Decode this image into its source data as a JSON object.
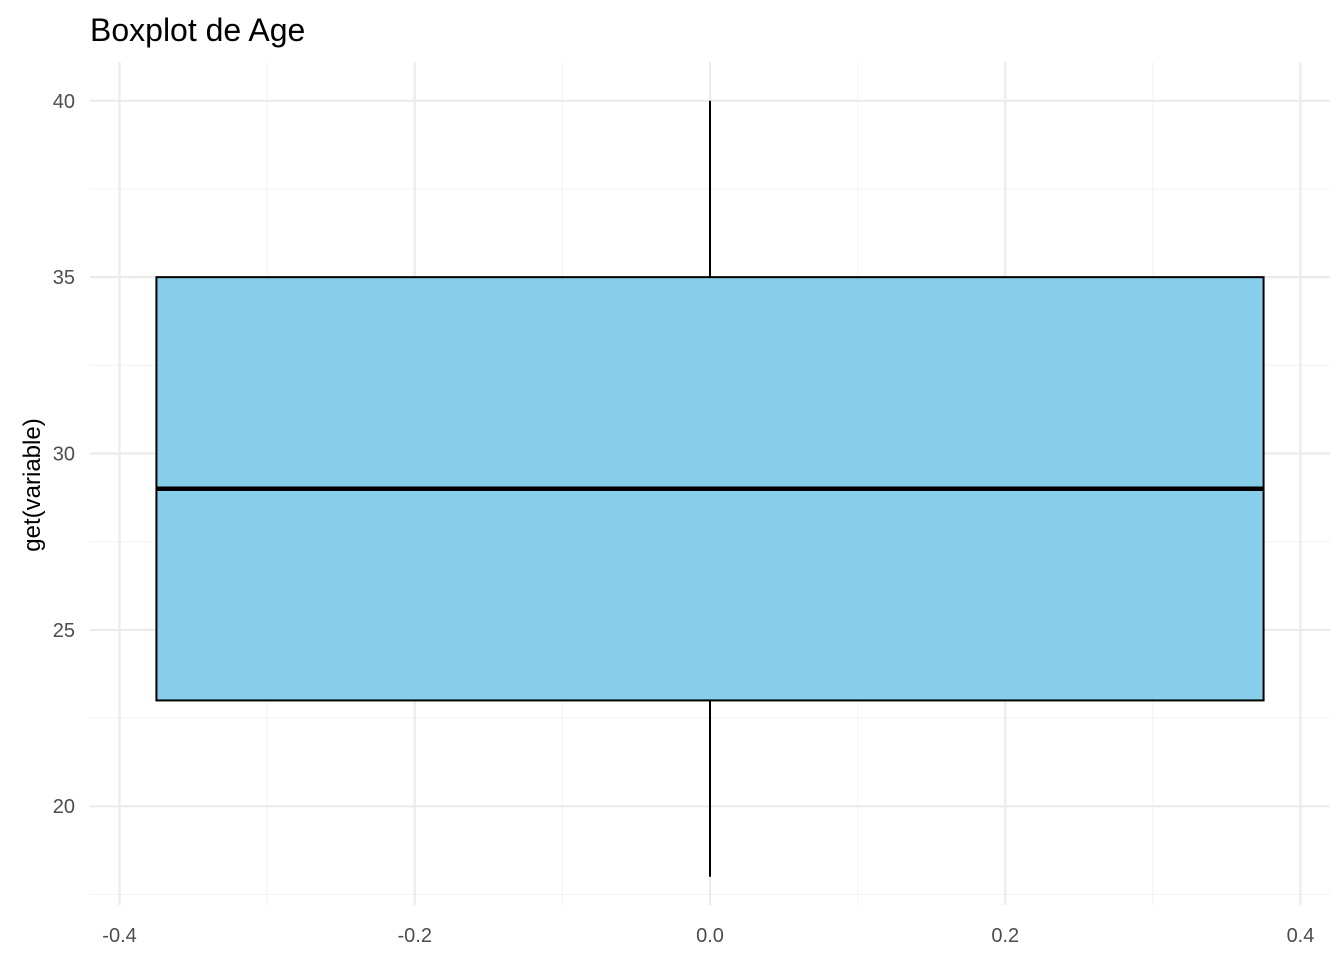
{
  "chart_data": {
    "type": "boxplot",
    "title": "Boxplot de Age",
    "xlabel": "",
    "ylabel": "get(variable)",
    "xlim": [
      -0.42,
      0.42
    ],
    "ylim": [
      17.2,
      41.1
    ],
    "x_ticks": [
      -0.4,
      -0.2,
      0.0,
      0.2,
      0.4
    ],
    "x_tick_labels": [
      "-0.4",
      "-0.2",
      "0.0",
      "0.2",
      "0.4"
    ],
    "y_ticks": [
      20,
      25,
      30,
      35,
      40
    ],
    "y_tick_labels": [
      "20",
      "25",
      "30",
      "35",
      "40"
    ],
    "grid": true,
    "legend": "none",
    "box": {
      "x_center": 0.0,
      "x_left": -0.375,
      "x_right": 0.375,
      "whisker_low": 18,
      "q1": 23,
      "median": 29,
      "q3": 35,
      "whisker_high": 40
    },
    "colors": {
      "box_fill": "#87CEEB",
      "box_outline": "#000000",
      "grid_major": "#ebebeb",
      "grid_minor": "#f3f3f3",
      "tick_text": "#4d4d4d",
      "background": "#ffffff"
    }
  }
}
